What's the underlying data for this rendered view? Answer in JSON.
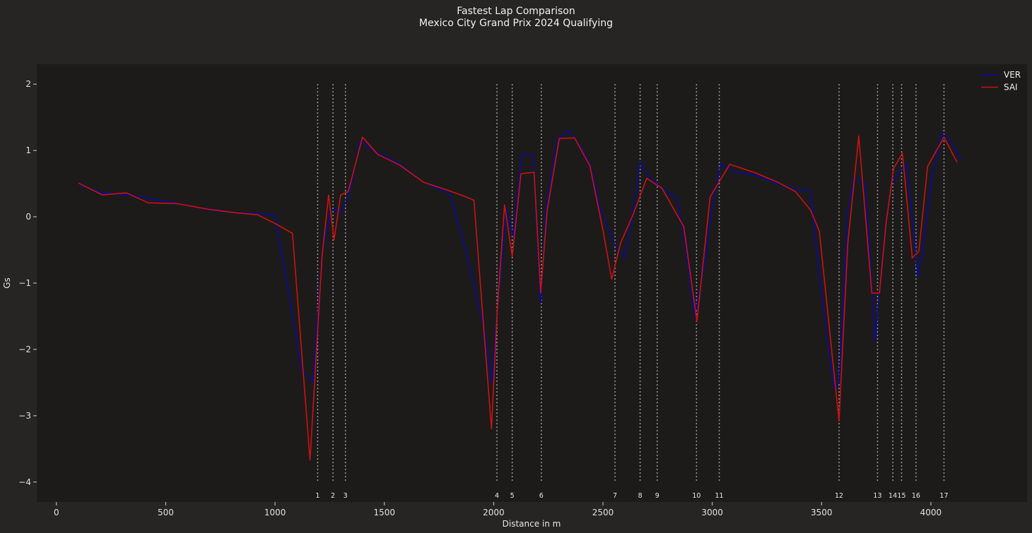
{
  "chart_data": {
    "type": "line",
    "title": "Fastest Lap Comparison",
    "subtitle": "Mexico City Grand Prix 2024 Qualifying",
    "xlabel": "Distance in m",
    "ylabel": "Gs",
    "xlim": [
      -90,
      4440
    ],
    "ylim": [
      -4.3,
      2.3
    ],
    "xticks": [
      0,
      500,
      1000,
      1500,
      2000,
      2500,
      3000,
      3500,
      4000
    ],
    "yticks": [
      -4,
      -3,
      -2,
      -1,
      0,
      1,
      2
    ],
    "grid": false,
    "legend_position": "top-right",
    "corners": [
      {
        "label": "1",
        "x": 1195
      },
      {
        "label": "2",
        "x": 1265
      },
      {
        "label": "3",
        "x": 1322
      },
      {
        "label": "4",
        "x": 2015
      },
      {
        "label": "5",
        "x": 2085
      },
      {
        "label": "6",
        "x": 2218
      },
      {
        "label": "7",
        "x": 2555
      },
      {
        "label": "8",
        "x": 2670
      },
      {
        "label": "9",
        "x": 2748
      },
      {
        "label": "10",
        "x": 2928
      },
      {
        "label": "11",
        "x": 3032
      },
      {
        "label": "12",
        "x": 3580
      },
      {
        "label": "13",
        "x": 3756
      },
      {
        "label": "14",
        "x": 3826
      },
      {
        "label": "15",
        "x": 3866
      },
      {
        "label": "16",
        "x": 3932
      },
      {
        "label": "17",
        "x": 4060
      }
    ],
    "corner_line_range": [
      -4,
      2
    ],
    "series": [
      {
        "name": "VER",
        "color": "#0a0aa0",
        "points": [
          [
            110,
            0.47
          ],
          [
            210,
            0.36
          ],
          [
            320,
            0.33
          ],
          [
            420,
            0.28
          ],
          [
            560,
            0.2
          ],
          [
            700,
            0.1
          ],
          [
            820,
            0.06
          ],
          [
            920,
            0.05
          ],
          [
            1000,
            0.03
          ],
          [
            1060,
            -1.1
          ],
          [
            1120,
            -2.3
          ],
          [
            1175,
            -2.5
          ],
          [
            1215,
            -0.55
          ],
          [
            1255,
            0.1
          ],
          [
            1275,
            0.12
          ],
          [
            1300,
            0.05
          ],
          [
            1340,
            0.35
          ],
          [
            1390,
            1.15
          ],
          [
            1450,
            1.0
          ],
          [
            1560,
            0.82
          ],
          [
            1680,
            0.52
          ],
          [
            1800,
            0.35
          ],
          [
            1880,
            -0.6
          ],
          [
            1960,
            -1.75
          ],
          [
            1990,
            -2.5
          ],
          [
            2020,
            -1.3
          ],
          [
            2060,
            0.1
          ],
          [
            2090,
            -0.3
          ],
          [
            2130,
            0.95
          ],
          [
            2180,
            0.92
          ],
          [
            2215,
            -1.3
          ],
          [
            2240,
            0.1
          ],
          [
            2290,
            1.15
          ],
          [
            2340,
            1.3
          ],
          [
            2390,
            1.1
          ],
          [
            2440,
            0.8
          ],
          [
            2490,
            0.1
          ],
          [
            2550,
            -0.4
          ],
          [
            2600,
            -0.62
          ],
          [
            2640,
            0.1
          ],
          [
            2670,
            0.82
          ],
          [
            2710,
            0.6
          ],
          [
            2790,
            0.38
          ],
          [
            2840,
            0.28
          ],
          [
            2880,
            -0.5
          ],
          [
            2920,
            -1.5
          ],
          [
            2960,
            -0.8
          ],
          [
            3000,
            0.15
          ],
          [
            3040,
            0.8
          ],
          [
            3100,
            0.68
          ],
          [
            3200,
            0.62
          ],
          [
            3300,
            0.5
          ],
          [
            3400,
            0.4
          ],
          [
            3450,
            0.4
          ],
          [
            3480,
            -0.6
          ],
          [
            3520,
            -1.7
          ],
          [
            3560,
            -2.6
          ],
          [
            3580,
            -2.5
          ],
          [
            3620,
            0.1
          ],
          [
            3650,
            0.6
          ],
          [
            3700,
            0.5
          ],
          [
            3745,
            -1.88
          ],
          [
            3790,
            -0.2
          ],
          [
            3820,
            0.5
          ],
          [
            3860,
            0.7
          ],
          [
            3890,
            0.8
          ],
          [
            3920,
            -0.2
          ],
          [
            3940,
            -0.9
          ],
          [
            3960,
            -0.6
          ],
          [
            4000,
            0.5
          ],
          [
            4050,
            1.26
          ],
          [
            4100,
            1.1
          ],
          [
            4140,
            0.85
          ]
        ]
      },
      {
        "name": "SAI",
        "color": "#cc1111",
        "points": [
          [
            100,
            0.51
          ],
          [
            210,
            0.33
          ],
          [
            320,
            0.36
          ],
          [
            420,
            0.21
          ],
          [
            550,
            0.2
          ],
          [
            700,
            0.11
          ],
          [
            820,
            0.06
          ],
          [
            920,
            0.03
          ],
          [
            1000,
            -0.1
          ],
          [
            1080,
            -0.25
          ],
          [
            1160,
            -3.67
          ],
          [
            1215,
            -0.6
          ],
          [
            1245,
            0.33
          ],
          [
            1270,
            -0.35
          ],
          [
            1300,
            0.33
          ],
          [
            1335,
            0.38
          ],
          [
            1400,
            1.2
          ],
          [
            1470,
            0.94
          ],
          [
            1570,
            0.78
          ],
          [
            1680,
            0.52
          ],
          [
            1780,
            0.41
          ],
          [
            1850,
            0.33
          ],
          [
            1910,
            0.25
          ],
          [
            1990,
            -3.2
          ],
          [
            2015,
            -1.5
          ],
          [
            2050,
            0.18
          ],
          [
            2085,
            -0.6
          ],
          [
            2125,
            0.65
          ],
          [
            2185,
            0.67
          ],
          [
            2215,
            -1.15
          ],
          [
            2245,
            0.1
          ],
          [
            2300,
            1.18
          ],
          [
            2370,
            1.19
          ],
          [
            2440,
            0.77
          ],
          [
            2500,
            -0.2
          ],
          [
            2540,
            -0.94
          ],
          [
            2580,
            -0.4
          ],
          [
            2640,
            0.05
          ],
          [
            2700,
            0.58
          ],
          [
            2770,
            0.43
          ],
          [
            2870,
            -0.15
          ],
          [
            2930,
            -1.58
          ],
          [
            2990,
            0.3
          ],
          [
            3080,
            0.79
          ],
          [
            3200,
            0.66
          ],
          [
            3300,
            0.52
          ],
          [
            3380,
            0.38
          ],
          [
            3450,
            0.1
          ],
          [
            3490,
            -0.22
          ],
          [
            3580,
            -3.08
          ],
          [
            3620,
            -0.4
          ],
          [
            3670,
            1.22
          ],
          [
            3730,
            -1.15
          ],
          [
            3765,
            -1.15
          ],
          [
            3795,
            -0.1
          ],
          [
            3830,
            0.73
          ],
          [
            3870,
            0.96
          ],
          [
            3915,
            -0.62
          ],
          [
            3945,
            -0.52
          ],
          [
            3985,
            0.76
          ],
          [
            4060,
            1.2
          ],
          [
            4120,
            0.82
          ]
        ]
      }
    ]
  }
}
